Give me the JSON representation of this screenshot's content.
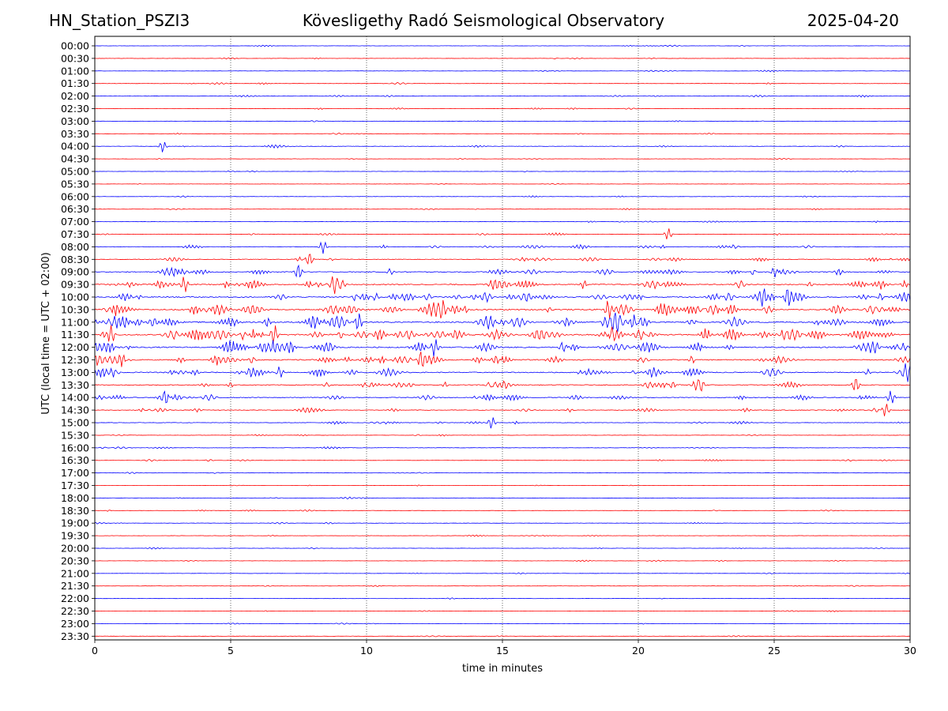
{
  "header": {
    "station": "HN_Station_PSZI3",
    "observatory": "Kövesligethy Radó Seismological Observatory",
    "date": "2025-04-20"
  },
  "chart_data": {
    "type": "line",
    "xlabel": "time in minutes",
    "ylabel": "UTC (local time = UTC + 02:00)",
    "xlim": [
      0,
      30
    ],
    "x_ticks": [
      0,
      5,
      10,
      15,
      20,
      25,
      30
    ],
    "vertical_gridlines": [
      5,
      10,
      15,
      20,
      25
    ],
    "grid": "vertical dotted",
    "row_labels": [
      "00:00",
      "00:30",
      "01:00",
      "01:30",
      "02:00",
      "02:30",
      "03:00",
      "03:30",
      "04:00",
      "04:30",
      "05:00",
      "05:30",
      "06:00",
      "06:30",
      "07:00",
      "07:30",
      "08:00",
      "08:30",
      "09:00",
      "09:30",
      "10:00",
      "10:30",
      "11:00",
      "11:30",
      "12:00",
      "12:30",
      "13:00",
      "13:30",
      "14:00",
      "14:30",
      "15:00",
      "15:30",
      "16:00",
      "16:30",
      "17:00",
      "17:30",
      "18:00",
      "18:30",
      "19:00",
      "19:30",
      "20:00",
      "20:30",
      "21:00",
      "21:30",
      "22:00",
      "22:30",
      "23:00",
      "23:30"
    ],
    "row_colors": [
      "#0000ff",
      "#ff0000"
    ],
    "activity_level": [
      0.05,
      0.05,
      0.05,
      0.08,
      0.12,
      0.08,
      0.06,
      0.05,
      0.12,
      0.05,
      0.03,
      0.03,
      0.06,
      0.06,
      0.1,
      0.15,
      0.3,
      0.35,
      0.55,
      0.7,
      0.8,
      0.9,
      0.95,
      1.0,
      0.85,
      0.75,
      0.7,
      0.55,
      0.5,
      0.35,
      0.2,
      0.1,
      0.12,
      0.12,
      0.06,
      0.06,
      0.08,
      0.1,
      0.08,
      0.06,
      0.08,
      0.06,
      0.04,
      0.04,
      0.04,
      0.04,
      0.04,
      0.04
    ],
    "notable_events": [
      {
        "row": 8,
        "minute": 2.5
      },
      {
        "row": 15,
        "minute": 21.1
      },
      {
        "row": 16,
        "minute": 8.4
      },
      {
        "row": 17,
        "minute": 7.9
      },
      {
        "row": 18,
        "minute": 7.5
      },
      {
        "row": 19,
        "minute": 3.3
      },
      {
        "row": 19,
        "minute": 8.8
      },
      {
        "row": 20,
        "minute": 24.6
      },
      {
        "row": 20,
        "minute": 25.5
      },
      {
        "row": 21,
        "minute": 12.8
      },
      {
        "row": 21,
        "minute": 18.9
      },
      {
        "row": 22,
        "minute": 9.7
      },
      {
        "row": 22,
        "minute": 19.2
      },
      {
        "row": 23,
        "minute": 0.6
      },
      {
        "row": 23,
        "minute": 6.6
      },
      {
        "row": 23,
        "minute": 19.0
      },
      {
        "row": 24,
        "minute": 12.5
      },
      {
        "row": 25,
        "minute": 12.0
      },
      {
        "row": 26,
        "minute": 6.8
      },
      {
        "row": 26,
        "minute": 29.9
      },
      {
        "row": 27,
        "minute": 22.3
      },
      {
        "row": 27,
        "minute": 28.0
      },
      {
        "row": 28,
        "minute": 2.6
      },
      {
        "row": 28,
        "minute": 29.3
      },
      {
        "row": 29,
        "minute": 29.1
      },
      {
        "row": 30,
        "minute": 14.6
      }
    ]
  }
}
